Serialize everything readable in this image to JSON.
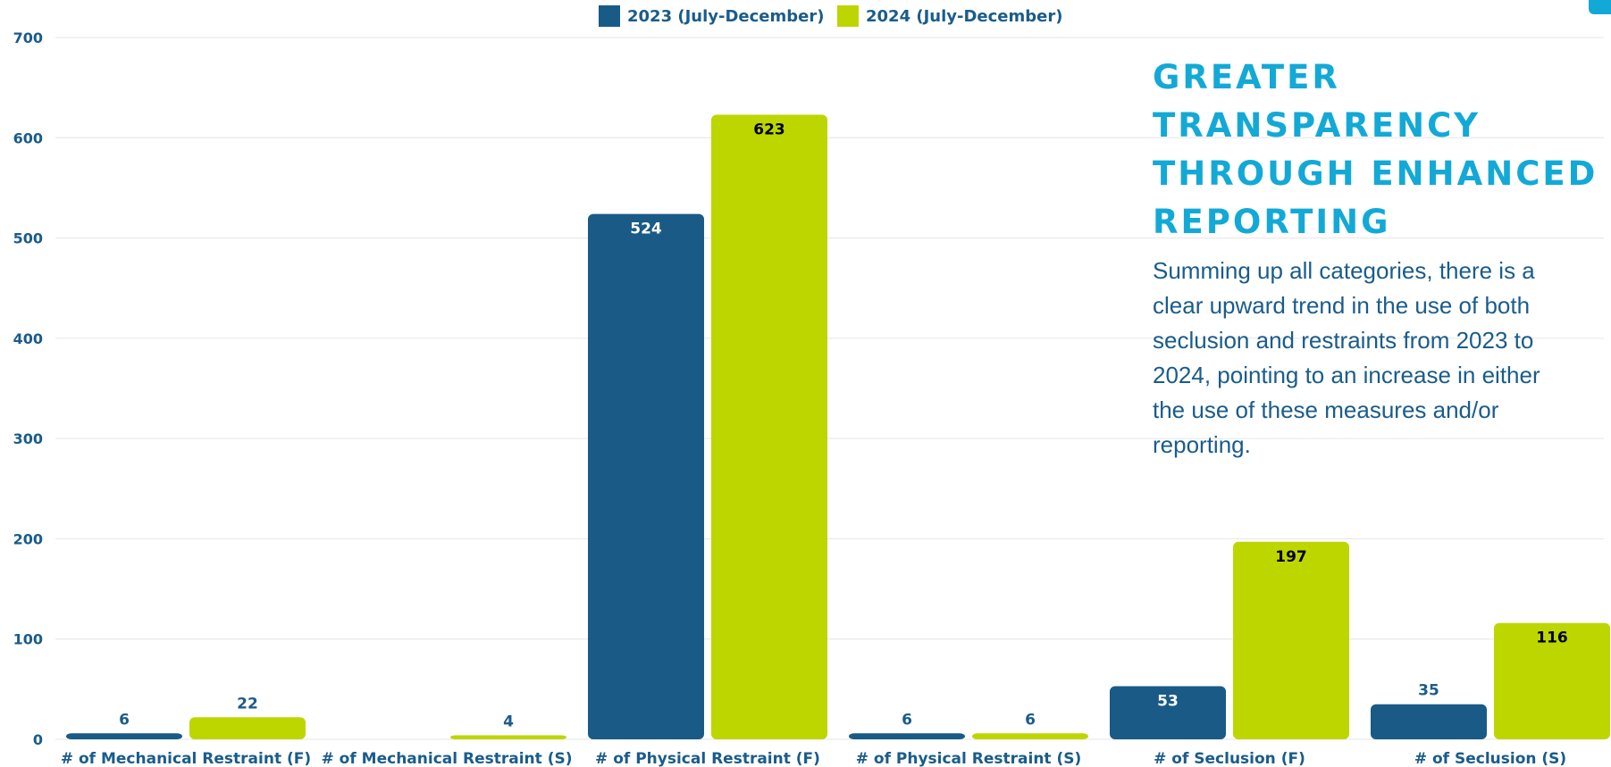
{
  "colors": {
    "series_2023": "#1a5a87",
    "series_2024": "#bdd600",
    "axis_text": "#1a5c8b",
    "heading": "#13a9d6",
    "gridline": "#e6e6e6"
  },
  "callout": {
    "heading": "GREATER TRANSPARENCY THROUGH ENHANCED REPORTING",
    "body": "Summing up all categories, there is a clear upward trend in the use of both seclusion and restraints from 2023 to 2024, pointing to an increase in either the use of these measures and/or reporting."
  },
  "chart_data": {
    "type": "bar",
    "categories": [
      "# of Mechanical Restraint (F)",
      "# of Mechanical Restraint (S)",
      "# of Physical Restraint (F)",
      "# of Physical Restraint (S)",
      "# of Seclusion (F)",
      "# of Seclusion (S)"
    ],
    "series": [
      {
        "name": "2023 (July-December)",
        "values": [
          6,
          0,
          524,
          6,
          53,
          35
        ],
        "data_labels": [
          "6",
          "",
          "524",
          "6",
          "53",
          "35"
        ]
      },
      {
        "name": "2024 (July-December)",
        "values": [
          22,
          4,
          623,
          6,
          197,
          116
        ],
        "data_labels": [
          "22",
          "4",
          "623",
          "6",
          "197",
          "116"
        ]
      }
    ],
    "ylim": [
      0,
      700
    ],
    "yticks": [
      0,
      100,
      200,
      300,
      400,
      500,
      600,
      700
    ],
    "grid": true,
    "legend_position": "top-center",
    "title": "",
    "xlabel": "",
    "ylabel": ""
  }
}
